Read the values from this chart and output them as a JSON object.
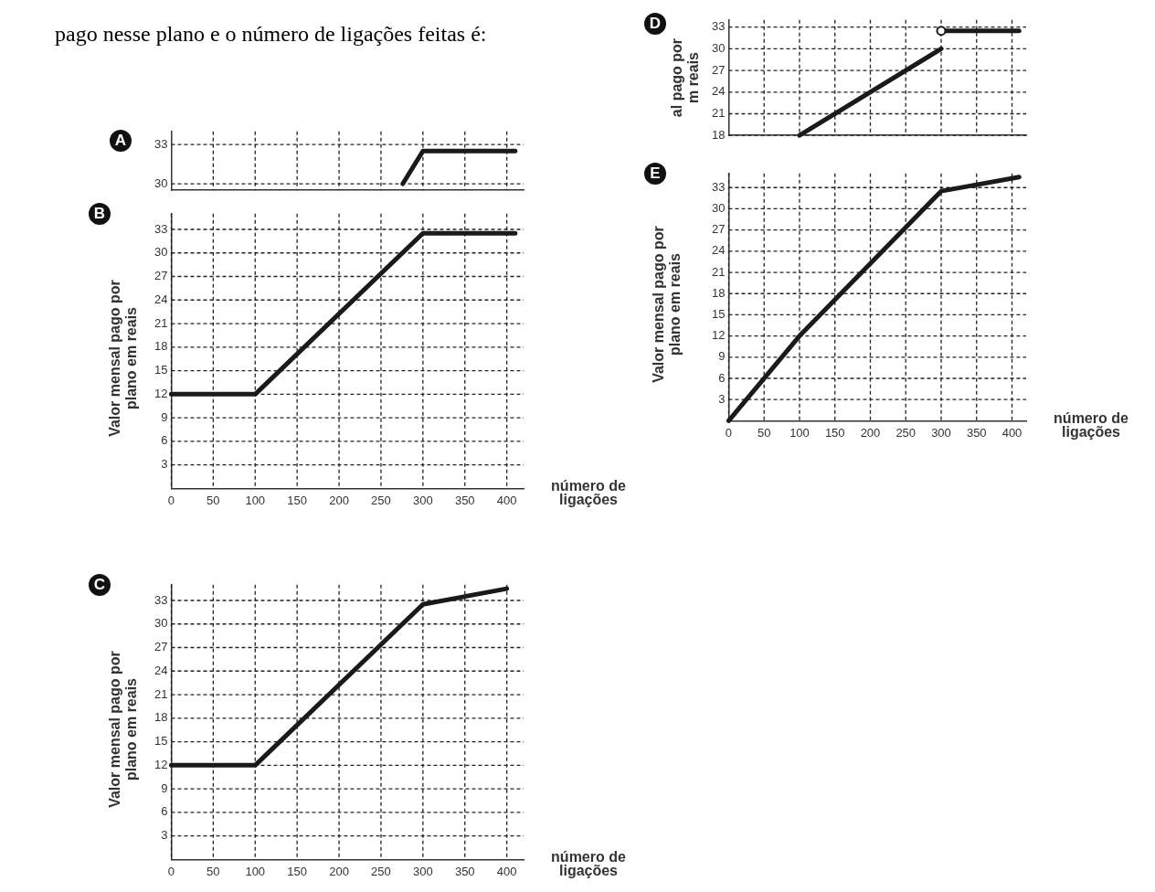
{
  "chart_data": [
    {
      "type": "line",
      "title": "A",
      "annotations": [
        "pago nesse plano e o número de ligações feitas é:"
      ],
      "xlim": [
        0,
        420
      ],
      "xticks": [
        50,
        100,
        150,
        200,
        250,
        300,
        350,
        400
      ],
      "ylim": [
        29.5,
        34
      ],
      "yticks": [
        30,
        33
      ],
      "tick_labels": "y",
      "grid": true,
      "marker": "none",
      "line_style": "solid",
      "series": [
        {
          "color": "#1a1a1a",
          "x": [
            276,
            300,
            410
          ],
          "values": [
            30,
            32.5,
            32.5
          ]
        }
      ]
    },
    {
      "type": "line",
      "title": "D",
      "ylabel": "al pago por\nm reais",
      "xlim": [
        0,
        420
      ],
      "xticks": [
        50,
        100,
        150,
        200,
        250,
        300,
        350,
        400
      ],
      "ylim": [
        18,
        34
      ],
      "yticks": [
        18,
        21,
        24,
        27,
        30,
        33
      ],
      "tick_labels": "y",
      "grid": true,
      "marker": "none",
      "line_style": "solid",
      "series": [
        {
          "color": "#1a1a1a",
          "x": [
            100,
            300
          ],
          "values": [
            18,
            30
          ]
        },
        {
          "color": "#1a1a1a",
          "x": [
            300,
            410
          ],
          "values": [
            32.5,
            32.5
          ]
        },
        {
          "type": "scatter",
          "marker": "circle",
          "color": "#1a1a1a",
          "x": [
            300
          ],
          "values": [
            32.5
          ]
        }
      ]
    },
    {
      "type": "line",
      "title": "B",
      "ylabel": "Valor mensal pago por plano em reais",
      "xlabel": "número de ligações",
      "xlim": [
        0,
        420
      ],
      "xticks": [
        0,
        50,
        100,
        150,
        200,
        250,
        300,
        350,
        400
      ],
      "ylim": [
        0,
        35
      ],
      "yticks": [
        3,
        6,
        9,
        12,
        15,
        18,
        21,
        24,
        27,
        30,
        33
      ],
      "grid": true,
      "marker": "none",
      "line_style": "solid",
      "series": [
        {
          "color": "#1a1a1a",
          "x": [
            0,
            100,
            300,
            410
          ],
          "values": [
            12,
            12,
            32.5,
            32.5
          ]
        }
      ]
    },
    {
      "type": "line",
      "title": "E",
      "ylabel": "Valor mensal pago por plano em reais",
      "xlabel": "número de ligações",
      "xlim": [
        0,
        420
      ],
      "xticks": [
        0,
        50,
        100,
        150,
        200,
        250,
        300,
        350,
        400
      ],
      "ylim": [
        0,
        35
      ],
      "yticks": [
        3,
        6,
        9,
        12,
        15,
        18,
        21,
        24,
        27,
        30,
        33
      ],
      "grid": true,
      "marker": "none",
      "line_style": "solid",
      "series": [
        {
          "color": "#1a1a1a",
          "x": [
            0,
            100,
            300,
            410
          ],
          "values": [
            0,
            12,
            32.5,
            34.5
          ]
        }
      ]
    },
    {
      "type": "line",
      "title": "C",
      "ylabel": "Valor mensal pago por plano em reais",
      "xlabel": "número de ligações",
      "xlim": [
        0,
        420
      ],
      "xticks": [
        0,
        50,
        100,
        150,
        200,
        250,
        300,
        350,
        400
      ],
      "ylim": [
        0,
        35
      ],
      "yticks": [
        3,
        6,
        9,
        12,
        15,
        18,
        21,
        24,
        27,
        30,
        33
      ],
      "grid": true,
      "marker": "none",
      "line_style": "solid",
      "series": [
        {
          "color": "#1a1a1a",
          "x": [
            0,
            100,
            300,
            400
          ],
          "values": [
            12,
            12,
            32.5,
            34.5
          ]
        }
      ]
    }
  ]
}
